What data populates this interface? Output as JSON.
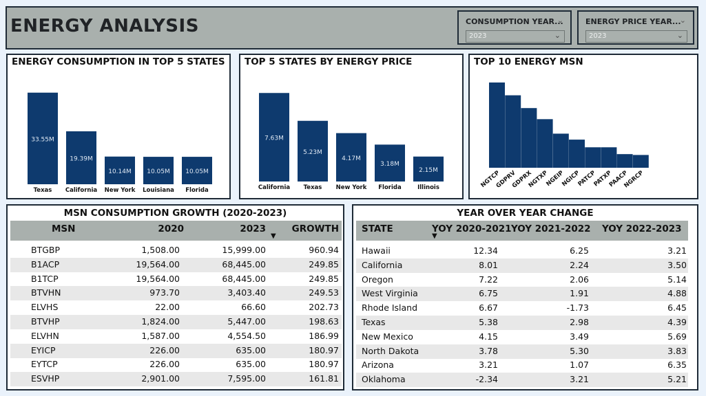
{
  "header": {
    "title": "ENERGY ANALYSIS",
    "slicers": [
      {
        "label": "CONSUMPTION YEAR...",
        "value": "2023"
      },
      {
        "label": "ENERGY PRICE YEAR...",
        "value": "2023"
      }
    ]
  },
  "icons": {
    "chevron": "chevron-down-icon",
    "sort": "sort-desc-icon"
  },
  "colors": {
    "bar": "#0e3a6e",
    "header_bg": "#a9b0ad"
  },
  "charts": {
    "consumption": {
      "title": "ENERGY CONSUMPTION IN TOP 5 STATES"
    },
    "price": {
      "title": "TOP 5 STATES BY ENERGY PRICE"
    },
    "msn": {
      "title": "TOP 10 ENERGY MSN"
    }
  },
  "chart_data": [
    {
      "type": "bar",
      "title": "ENERGY CONSUMPTION IN TOP 5 STATES",
      "categories": [
        "Texas",
        "California",
        "New York",
        "Louisiana",
        "Florida"
      ],
      "values": [
        33.55,
        19.39,
        10.14,
        10.05,
        10.05
      ],
      "data_labels": [
        "33.55M",
        "19.39M",
        "10.14M",
        "10.05M",
        "10.05M"
      ],
      "xlabel": "",
      "ylabel": "",
      "ylim": [
        0,
        35
      ]
    },
    {
      "type": "bar",
      "title": "TOP 5 STATES BY ENERGY PRICE",
      "categories": [
        "California",
        "Texas",
        "New York",
        "Florida",
        "Illinois"
      ],
      "values": [
        7.63,
        5.23,
        4.17,
        3.18,
        2.15
      ],
      "data_labels": [
        "7.63M",
        "5.23M",
        "4.17M",
        "3.18M",
        "2.15M"
      ],
      "xlabel": "",
      "ylabel": "",
      "ylim": [
        0,
        8
      ]
    },
    {
      "type": "bar",
      "title": "TOP 10 ENERGY MSN",
      "categories": [
        "NGTCP",
        "GDPRV",
        "GDPRX",
        "NGTXP",
        "NGEIP",
        "NGICP",
        "PATCP",
        "PATXP",
        "PAACP",
        "NGRCP"
      ],
      "values": [
        100,
        85,
        70,
        57,
        40,
        33,
        24,
        24,
        16,
        15
      ],
      "xlabel": "",
      "ylabel": "",
      "ylim": [
        0,
        105
      ]
    }
  ],
  "msn_table": {
    "title": "MSN CONSUMPTION GROWTH (2020-2023)",
    "columns": [
      "MSN",
      "2020",
      "2023",
      "GROWTH"
    ],
    "rows": [
      [
        "BTGBP",
        "1,508.00",
        "15,999.00",
        "960.94"
      ],
      [
        "B1ACP",
        "19,564.00",
        "68,445.00",
        "249.85"
      ],
      [
        "B1TCP",
        "19,564.00",
        "68,445.00",
        "249.85"
      ],
      [
        "BTVHN",
        "973.70",
        "3,403.40",
        "249.53"
      ],
      [
        "ELVHS",
        "22.00",
        "66.60",
        "202.73"
      ],
      [
        "BTVHP",
        "1,824.00",
        "5,447.00",
        "198.63"
      ],
      [
        "ELVHN",
        "1,587.00",
        "4,554.50",
        "186.99"
      ],
      [
        "EYICP",
        "226.00",
        "635.00",
        "180.97"
      ],
      [
        "EYTCP",
        "226.00",
        "635.00",
        "180.97"
      ],
      [
        "ESVHP",
        "2,901.00",
        "7,595.00",
        "161.81"
      ]
    ]
  },
  "yoy_table": {
    "title": "YEAR OVER YEAR CHANGE",
    "columns": [
      "STATE",
      "YOY 2020-2021",
      "YOY 2021-2022",
      "YOY 2022-2023"
    ],
    "rows": [
      [
        "Hawaii",
        "12.34",
        "6.25",
        "3.21"
      ],
      [
        "California",
        "8.01",
        "2.24",
        "3.50"
      ],
      [
        "Oregon",
        "7.22",
        "2.06",
        "5.14"
      ],
      [
        "West Virginia",
        "6.75",
        "1.91",
        "4.88"
      ],
      [
        "Rhode Island",
        "6.67",
        "-1.73",
        "6.45"
      ],
      [
        "Texas",
        "5.38",
        "2.98",
        "4.39"
      ],
      [
        "New Mexico",
        "4.15",
        "3.49",
        "5.69"
      ],
      [
        "North Dakota",
        "3.78",
        "5.30",
        "3.83"
      ],
      [
        "Arizona",
        "3.21",
        "1.07",
        "6.35"
      ],
      [
        "Oklahoma",
        "-2.34",
        "3.21",
        "5.21"
      ]
    ]
  }
}
